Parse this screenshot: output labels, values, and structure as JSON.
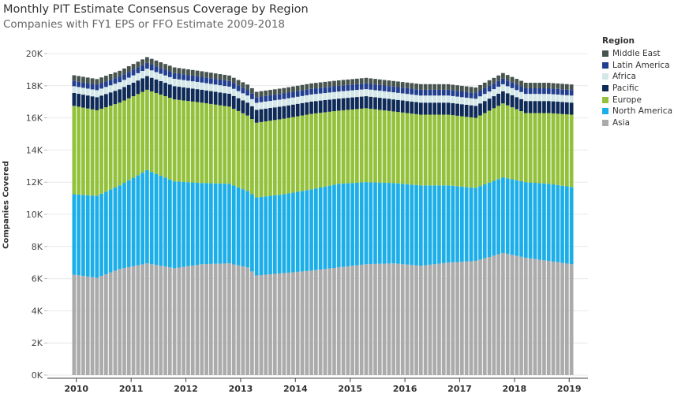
{
  "chart_data": {
    "type": "bar",
    "stacked": true,
    "title": "Monthly PIT Estimate Consensus Coverage by Region",
    "subtitle": "Companies with FY1 EPS or FFO Estimate 2009-2018",
    "xlabel": "",
    "ylabel": "Companies Covered",
    "ylim": [
      0,
      20500
    ],
    "y_ticks": [
      0,
      2000,
      4000,
      6000,
      8000,
      10000,
      12000,
      14000,
      16000,
      18000,
      20000
    ],
    "y_tick_labels": [
      "0K",
      "2K",
      "4K",
      "6K",
      "8K",
      "10K",
      "12K",
      "14K",
      "16K",
      "18K",
      "20K"
    ],
    "x_ticks": [
      "2010",
      "2011",
      "2012",
      "2013",
      "2014",
      "2015",
      "2016",
      "2017",
      "2018",
      "2019"
    ],
    "start_month": "2009-12",
    "n_months": 110,
    "legend_title": "Region",
    "legend_position": "right",
    "legend_order": [
      "Middle East",
      "Latin America",
      "Africa",
      "Pacific",
      "Europe",
      "North America",
      "Asia"
    ],
    "series": [
      {
        "name": "Asia",
        "color": "#ababab",
        "anchors": [
          [
            0,
            6250
          ],
          [
            5,
            6050
          ],
          [
            10,
            6600
          ],
          [
            16,
            6950
          ],
          [
            22,
            6650
          ],
          [
            28,
            6900
          ],
          [
            34,
            6950
          ],
          [
            38,
            6700
          ],
          [
            40,
            6200
          ],
          [
            46,
            6350
          ],
          [
            52,
            6500
          ],
          [
            58,
            6700
          ],
          [
            64,
            6900
          ],
          [
            70,
            6950
          ],
          [
            76,
            6800
          ],
          [
            82,
            7000
          ],
          [
            88,
            7100
          ],
          [
            94,
            7600
          ],
          [
            99,
            7300
          ],
          [
            104,
            7100
          ],
          [
            109,
            6900
          ]
        ]
      },
      {
        "name": "North America",
        "color": "#1caee8",
        "anchors": [
          [
            0,
            5000
          ],
          [
            10,
            5200
          ],
          [
            16,
            5800
          ],
          [
            22,
            5400
          ],
          [
            28,
            5050
          ],
          [
            34,
            4950
          ],
          [
            38,
            4750
          ],
          [
            40,
            4850
          ],
          [
            46,
            4900
          ],
          [
            52,
            5050
          ],
          [
            58,
            5200
          ],
          [
            64,
            5100
          ],
          [
            70,
            5000
          ],
          [
            76,
            5000
          ],
          [
            82,
            4800
          ],
          [
            88,
            4550
          ],
          [
            94,
            4700
          ],
          [
            99,
            4700
          ],
          [
            104,
            4800
          ],
          [
            109,
            4800
          ]
        ]
      },
      {
        "name": "Europe",
        "color": "#93c13b",
        "anchors": [
          [
            0,
            5500
          ],
          [
            10,
            5150
          ],
          [
            16,
            5000
          ],
          [
            22,
            5100
          ],
          [
            28,
            5000
          ],
          [
            34,
            4800
          ],
          [
            38,
            4700
          ],
          [
            40,
            4650
          ],
          [
            46,
            4700
          ],
          [
            52,
            4700
          ],
          [
            58,
            4550
          ],
          [
            64,
            4600
          ],
          [
            70,
            4450
          ],
          [
            76,
            4400
          ],
          [
            82,
            4400
          ],
          [
            88,
            4350
          ],
          [
            94,
            4600
          ],
          [
            99,
            4300
          ],
          [
            104,
            4400
          ],
          [
            109,
            4500
          ]
        ]
      },
      {
        "name": "Pacific",
        "color": "#0e2a57",
        "anchors": [
          [
            0,
            800
          ],
          [
            16,
            850
          ],
          [
            28,
            800
          ],
          [
            40,
            800
          ],
          [
            58,
            750
          ],
          [
            76,
            750
          ],
          [
            94,
            750
          ],
          [
            109,
            750
          ]
        ]
      },
      {
        "name": "Africa",
        "color": "#d3e6e8",
        "anchors": [
          [
            0,
            420
          ],
          [
            16,
            460
          ],
          [
            40,
            440
          ],
          [
            76,
            440
          ],
          [
            109,
            440
          ]
        ]
      },
      {
        "name": "Latin America",
        "color": "#223f8f",
        "anchors": [
          [
            0,
            330
          ],
          [
            16,
            360
          ],
          [
            40,
            350
          ],
          [
            76,
            360
          ],
          [
            109,
            350
          ]
        ]
      },
      {
        "name": "Middle East",
        "color": "#47534f",
        "anchors": [
          [
            0,
            350
          ],
          [
            16,
            360
          ],
          [
            40,
            330
          ],
          [
            76,
            350
          ],
          [
            109,
            340
          ]
        ]
      }
    ]
  }
}
